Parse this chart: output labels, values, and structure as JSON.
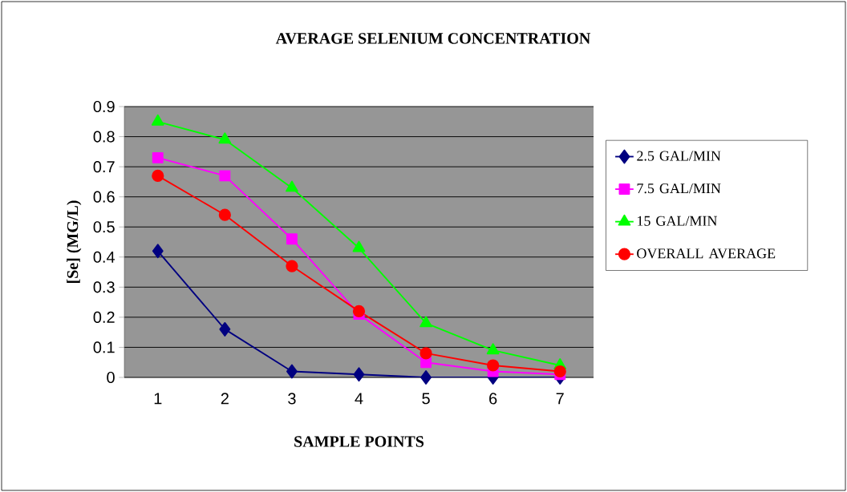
{
  "chart_data": {
    "type": "line",
    "title": "AVERAGE SELENIUM CONCENTRATION",
    "xlabel": "SAMPLE POINTS",
    "ylabel": "[Se] (MG/L)",
    "categories": [
      "1",
      "2",
      "3",
      "4",
      "5",
      "6",
      "7"
    ],
    "series": [
      {
        "name": "2.5 GAL/MIN",
        "color": "#000080",
        "marker": "diamond",
        "values": [
          0.42,
          0.16,
          0.02,
          0.01,
          0,
          0,
          0
        ]
      },
      {
        "name": "7.5 GAL/MIN",
        "color": "#ff00ff",
        "marker": "square",
        "values": [
          0.73,
          0.67,
          0.46,
          0.21,
          0.05,
          0.02,
          0.01
        ]
      },
      {
        "name": "15 GAL/MIN",
        "color": "#00ff00",
        "marker": "triangle",
        "values": [
          0.85,
          0.79,
          0.63,
          0.43,
          0.18,
          0.09,
          0.04
        ]
      },
      {
        "name": "OVERALL AVERAGE",
        "color": "#ff0000",
        "marker": "circle",
        "values": [
          0.67,
          0.54,
          0.37,
          0.22,
          0.08,
          0.04,
          0.02
        ]
      }
    ],
    "ylim": [
      0,
      0.9
    ],
    "yticks": [
      0,
      0.1,
      0.2,
      0.3,
      0.4,
      0.5,
      0.6,
      0.7,
      0.8,
      0.9
    ],
    "grid": "y",
    "legend": "right",
    "line_style": "solid"
  }
}
